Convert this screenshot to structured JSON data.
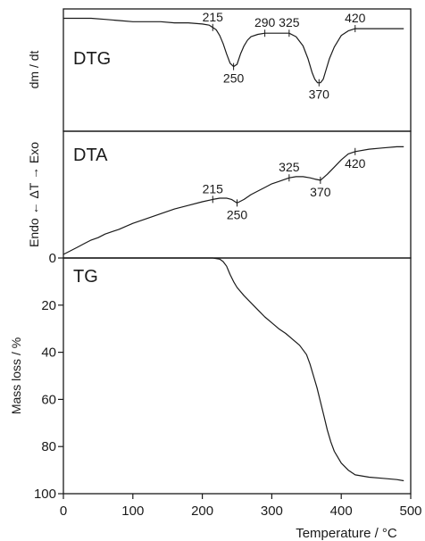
{
  "chart_data": [
    {
      "panel": "DTG",
      "type": "line",
      "panel_label": "DTG",
      "ylabel": "dm / dt",
      "x": [
        0,
        20,
        40,
        60,
        80,
        100,
        120,
        140,
        160,
        180,
        200,
        210,
        215,
        220,
        225,
        230,
        235,
        240,
        245,
        250,
        255,
        260,
        265,
        270,
        280,
        290,
        300,
        310,
        325,
        335,
        345,
        352,
        358,
        362,
        366,
        370,
        374,
        378,
        383,
        390,
        400,
        410,
        420,
        440,
        460,
        480,
        490
      ],
      "y": [
        0.95,
        0.95,
        0.95,
        0.94,
        0.93,
        0.92,
        0.92,
        0.92,
        0.91,
        0.91,
        0.9,
        0.89,
        0.87,
        0.85,
        0.8,
        0.73,
        0.64,
        0.56,
        0.53,
        0.55,
        0.64,
        0.71,
        0.76,
        0.79,
        0.81,
        0.82,
        0.82,
        0.82,
        0.82,
        0.79,
        0.71,
        0.6,
        0.48,
        0.42,
        0.39,
        0.39,
        0.42,
        0.5,
        0.6,
        0.7,
        0.8,
        0.84,
        0.86,
        0.86,
        0.86,
        0.86,
        0.86
      ],
      "annotations": [
        {
          "text": "215",
          "x": 215,
          "y": 0.87,
          "pos": "above"
        },
        {
          "text": "250",
          "x": 245,
          "y": 0.53,
          "pos": "below"
        },
        {
          "text": "290",
          "x": 290,
          "y": 0.82,
          "pos": "above"
        },
        {
          "text": "325",
          "x": 325,
          "y": 0.82,
          "pos": "above"
        },
        {
          "text": "370",
          "x": 368,
          "y": 0.39,
          "pos": "below"
        },
        {
          "text": "420",
          "x": 420,
          "y": 0.86,
          "pos": "above"
        }
      ]
    },
    {
      "panel": "DTA",
      "type": "line",
      "panel_label": "DTA",
      "ylabel": "Endo ← ΔT → Exo",
      "x": [
        0,
        10,
        20,
        30,
        40,
        50,
        60,
        80,
        100,
        120,
        140,
        160,
        180,
        200,
        215,
        225,
        235,
        242,
        250,
        260,
        270,
        280,
        290,
        300,
        310,
        320,
        325,
        335,
        345,
        355,
        362,
        370,
        380,
        390,
        400,
        410,
        420,
        440,
        460,
        480,
        490
      ],
      "y": [
        0.0,
        0.03,
        0.06,
        0.09,
        0.12,
        0.14,
        0.17,
        0.21,
        0.26,
        0.3,
        0.34,
        0.38,
        0.41,
        0.44,
        0.46,
        0.47,
        0.47,
        0.46,
        0.43,
        0.46,
        0.5,
        0.53,
        0.56,
        0.59,
        0.61,
        0.63,
        0.64,
        0.65,
        0.65,
        0.64,
        0.63,
        0.62,
        0.67,
        0.73,
        0.79,
        0.84,
        0.86,
        0.88,
        0.89,
        0.9,
        0.9
      ],
      "annotations": [
        {
          "text": "215",
          "x": 215,
          "y": 0.46,
          "pos": "above"
        },
        {
          "text": "250",
          "x": 250,
          "y": 0.43,
          "pos": "below"
        },
        {
          "text": "325",
          "x": 325,
          "y": 0.64,
          "pos": "above"
        },
        {
          "text": "370",
          "x": 370,
          "y": 0.62,
          "pos": "below"
        },
        {
          "text": "420",
          "x": 420,
          "y": 0.86,
          "pos": "below"
        }
      ]
    },
    {
      "panel": "TG",
      "type": "line",
      "panel_label": "TG",
      "xlabel": "Temperature / °C",
      "ylabel": "Mass loss / %",
      "xlim": [
        0,
        500
      ],
      "ylim": [
        0,
        100
      ],
      "x_ticks": [
        0,
        100,
        200,
        300,
        400,
        500
      ],
      "y_ticks": [
        0,
        20,
        40,
        60,
        80,
        100
      ],
      "x": [
        0,
        100,
        200,
        215,
        225,
        230,
        235,
        240,
        245,
        250,
        260,
        270,
        280,
        290,
        300,
        310,
        320,
        330,
        340,
        350,
        355,
        360,
        365,
        370,
        375,
        380,
        385,
        390,
        400,
        410,
        420,
        440,
        460,
        480,
        490
      ],
      "y": [
        0,
        0,
        0,
        0,
        0.5,
        1.5,
        3.5,
        7,
        10,
        12.5,
        16,
        19,
        22,
        25,
        27.5,
        30,
        32,
        34.5,
        37,
        41,
        45,
        50,
        55,
        61,
        67,
        73,
        78,
        82,
        87,
        90,
        92,
        93,
        93.5,
        94,
        94.5
      ]
    }
  ]
}
